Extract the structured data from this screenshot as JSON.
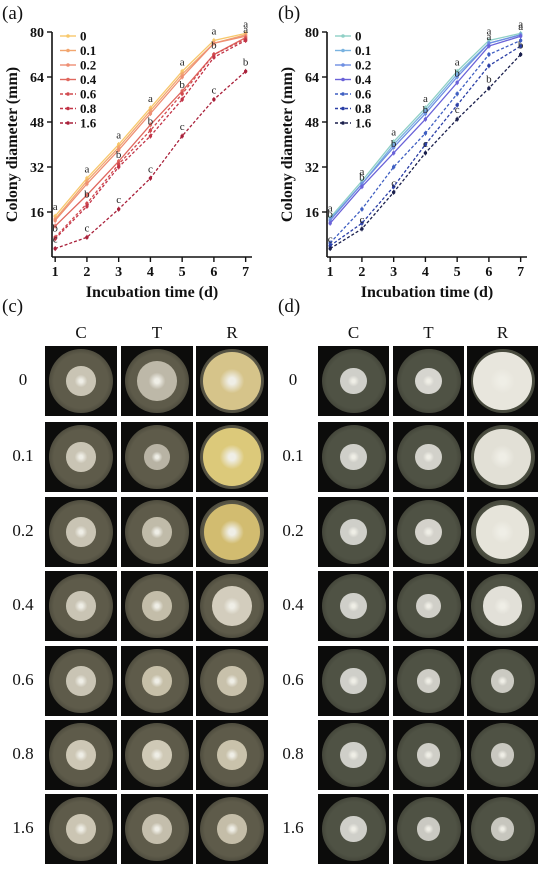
{
  "panel_labels": {
    "a": "(a)",
    "b": "(b)",
    "c": "(c)",
    "d": "(d)"
  },
  "chart_data": [
    {
      "type": "line",
      "panel": "(a)",
      "ylabel": "Colony diameter (mm)",
      "xlabel": "Incubation time (d)",
      "x": [
        1,
        2,
        3,
        4,
        5,
        6,
        7
      ],
      "yticks": [
        16,
        32,
        48,
        64,
        80
      ],
      "ylim": [
        0,
        80
      ],
      "xlim": [
        0.9,
        7.2
      ],
      "legend_position": "top-left",
      "series": [
        {
          "name": "0",
          "values": [
            14.5,
            28,
            40,
            53,
            66,
            77,
            79.5
          ],
          "color": "#F7C86B",
          "dash": false,
          "letters": [
            "a",
            "a",
            "a",
            "a",
            "a",
            "a",
            "a"
          ]
        },
        {
          "name": "0.1",
          "values": [
            13.5,
            27,
            39,
            52,
            65,
            76,
            79
          ],
          "color": "#F2A66F",
          "dash": false,
          "letters": [
            "",
            "",
            "",
            "",
            "",
            "",
            ""
          ]
        },
        {
          "name": "0.2",
          "values": [
            13,
            26,
            38,
            51,
            64,
            76,
            78.5
          ],
          "color": "#EE8F74",
          "dash": false,
          "letters": [
            "",
            "",
            "",
            "",
            "",
            "",
            ""
          ]
        },
        {
          "name": "0.4",
          "values": [
            11,
            22,
            34,
            47,
            59,
            72,
            78
          ],
          "color": "#E0685F",
          "dash": false,
          "letters": [
            "",
            "",
            "",
            "",
            "",
            "",
            ""
          ]
        },
        {
          "name": "0.6",
          "values": [
            7,
            19,
            33,
            45,
            58,
            72,
            77.5
          ],
          "color": "#D14A4F",
          "dash": true,
          "letters": [
            "b",
            "b",
            "b",
            "b",
            "b",
            "b",
            "a"
          ]
        },
        {
          "name": "0.8",
          "values": [
            6.5,
            18,
            32,
            43,
            56,
            71,
            77
          ],
          "color": "#C23447",
          "dash": true,
          "letters": [
            "",
            "",
            "",
            "",
            "",
            "",
            ""
          ]
        },
        {
          "name": "1.6",
          "values": [
            3,
            7,
            17,
            28,
            43,
            56,
            66
          ],
          "color": "#A9203A",
          "dash": true,
          "letters": [
            "c",
            "c",
            "c",
            "c",
            "c",
            "c",
            "b"
          ]
        }
      ]
    },
    {
      "type": "line",
      "panel": "(b)",
      "ylabel": "Colony diameter (mm)",
      "xlabel": "Incubation time (d)",
      "x": [
        1,
        2,
        3,
        4,
        5,
        6,
        7
      ],
      "yticks": [
        16,
        32,
        48,
        64,
        80
      ],
      "ylim": [
        0,
        80
      ],
      "xlim": [
        0.9,
        7.2
      ],
      "legend_position": "top-left",
      "series": [
        {
          "name": "0",
          "values": [
            14,
            27,
            41,
            53,
            66,
            77,
            79.5
          ],
          "color": "#8FD0C6",
          "dash": false,
          "letters": [
            "a",
            "a",
            "a",
            "a",
            "a",
            "a",
            "a"
          ]
        },
        {
          "name": "0.1",
          "values": [
            13.5,
            26,
            40,
            52,
            65,
            76,
            79
          ],
          "color": "#7AB3E0",
          "dash": false,
          "letters": [
            "",
            "",
            "",
            "",
            "",
            "",
            ""
          ]
        },
        {
          "name": "0.2",
          "values": [
            13,
            26,
            39,
            51,
            64,
            76,
            79
          ],
          "color": "#6E8FE2",
          "dash": false,
          "letters": [
            "",
            "",
            "",
            "",
            "",
            "",
            ""
          ]
        },
        {
          "name": "0.4",
          "values": [
            12,
            25,
            37,
            49,
            62,
            75,
            78.5
          ],
          "color": "#6A62D8",
          "dash": false,
          "letters": [
            "b",
            "b",
            "b",
            "b",
            "b",
            "a",
            "a"
          ]
        },
        {
          "name": "0.6",
          "values": [
            5,
            17,
            32,
            44,
            58,
            72,
            77
          ],
          "color": "#3F5FC2",
          "dash": true,
          "letters": [
            "",
            "",
            "",
            "",
            "",
            "",
            ""
          ]
        },
        {
          "name": "0.8",
          "values": [
            4,
            12,
            25,
            40,
            54,
            68,
            75
          ],
          "color": "#2B3FA6",
          "dash": true,
          "letters": [
            "",
            "",
            "",
            "",
            "",
            "",
            ""
          ]
        },
        {
          "name": "1.6",
          "values": [
            3,
            10,
            23,
            37,
            49,
            60,
            72
          ],
          "color": "#1A1F4C",
          "dash": true,
          "letters": [
            "c",
            "c",
            "c",
            "c",
            "c",
            "b",
            "b"
          ]
        }
      ]
    }
  ],
  "photo_panels": [
    {
      "label": "(c)",
      "columns": [
        "C",
        "T",
        "R"
      ],
      "rows": [
        "0",
        "0.1",
        "0.2",
        "0.4",
        "0.6",
        "0.8",
        "1.6"
      ]
    },
    {
      "label": "(d)",
      "columns": [
        "C",
        "T",
        "R"
      ],
      "rows": [
        "0",
        "0.1",
        "0.2",
        "0.4",
        "0.6",
        "0.8",
        "1.6"
      ]
    }
  ],
  "colors": {
    "dish_background": "#0c0c0b",
    "axis": "#111111"
  }
}
